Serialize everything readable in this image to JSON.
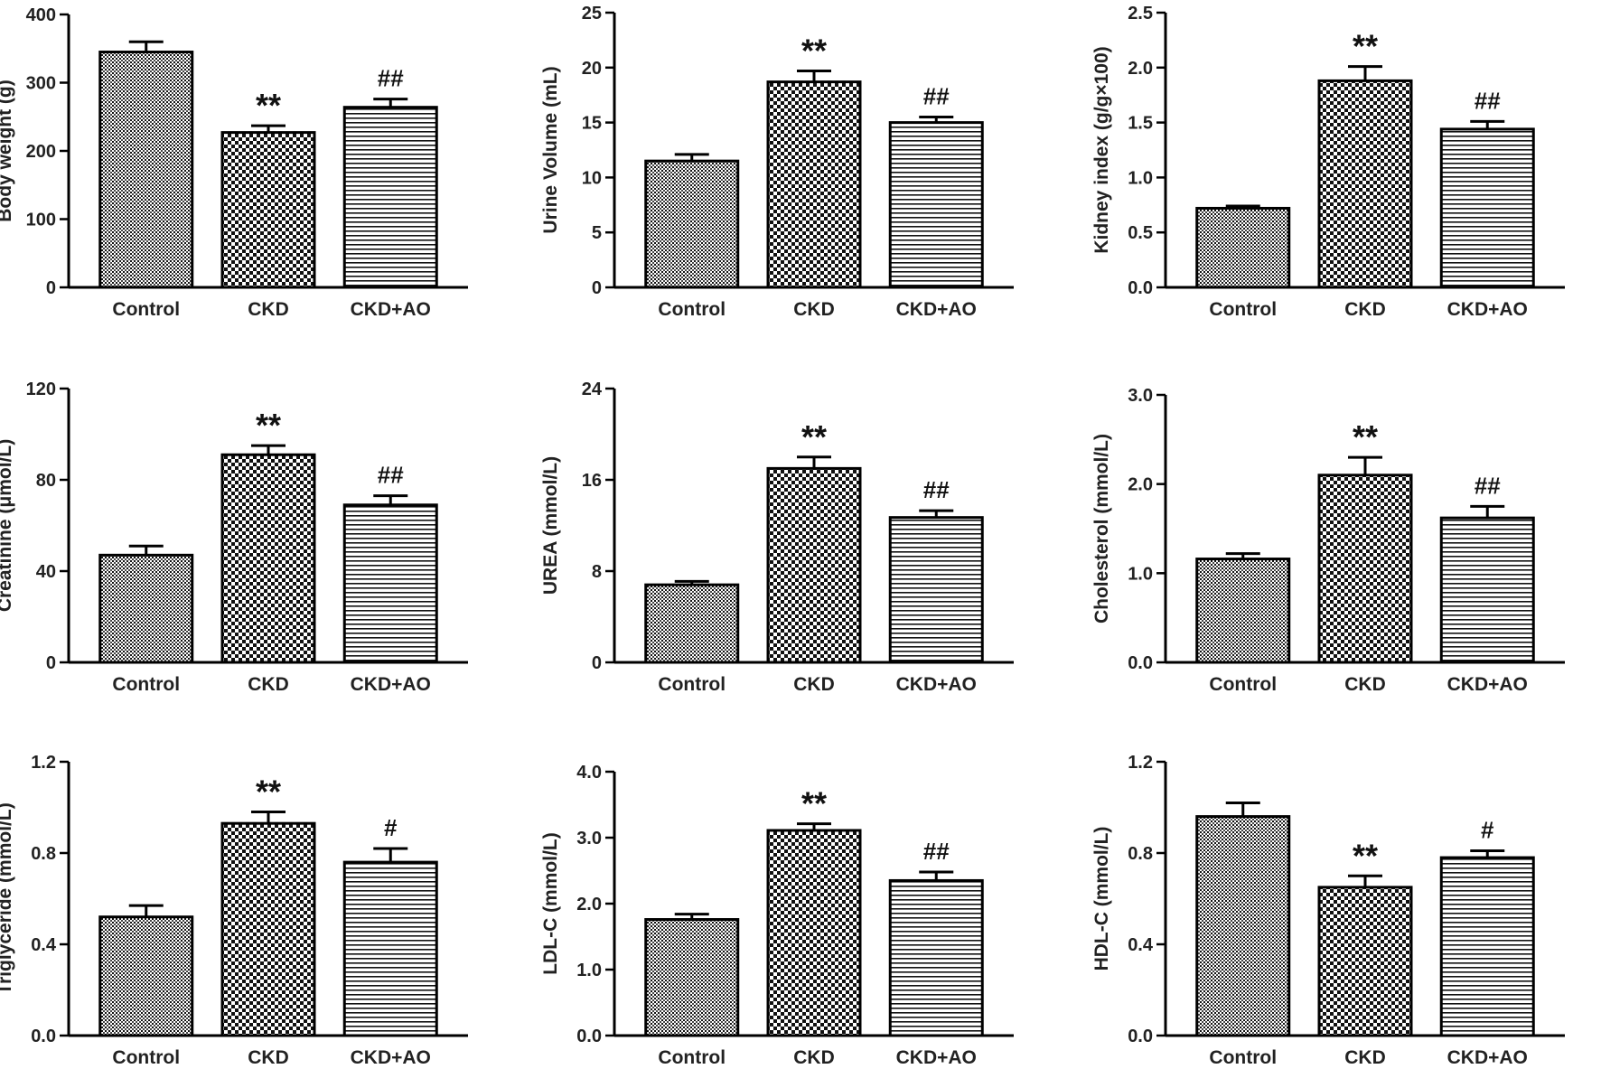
{
  "figure": {
    "categories": [
      "Control",
      "CKD",
      "CKD+AO"
    ],
    "patterns": [
      "fine-dots",
      "checker",
      "horizontal-lines"
    ]
  },
  "chart_data": [
    {
      "type": "bar",
      "ylabel": "Body weight (g)",
      "categories": [
        "Control",
        "CKD",
        "CKD+AO"
      ],
      "values": [
        345,
        227,
        264
      ],
      "errors": [
        15,
        10,
        12
      ],
      "annotations": [
        "",
        "**",
        "##"
      ],
      "ylim": [
        0,
        400
      ],
      "yticks": [
        0,
        100,
        200,
        300,
        400
      ],
      "ytick_labels": [
        "0",
        "100",
        "200",
        "300",
        "400"
      ]
    },
    {
      "type": "bar",
      "ylabel": "Urine Volume (mL)",
      "categories": [
        "Control",
        "CKD",
        "CKD+AO"
      ],
      "values": [
        11.5,
        18.7,
        15.0
      ],
      "errors": [
        0.6,
        1.0,
        0.5
      ],
      "annotations": [
        "",
        "**",
        "##"
      ],
      "ylim": [
        0,
        25
      ],
      "yticks": [
        0,
        5,
        10,
        15,
        20,
        25
      ],
      "ytick_labels": [
        "0",
        "5",
        "10",
        "15",
        "20",
        "25"
      ]
    },
    {
      "type": "bar",
      "ylabel": "Kidney  index (g/g×100)",
      "categories": [
        "Control",
        "CKD",
        "CKD+AO"
      ],
      "values": [
        0.72,
        1.88,
        1.44
      ],
      "errors": [
        0.02,
        0.13,
        0.07
      ],
      "annotations": [
        "",
        "**",
        "##"
      ],
      "ylim": [
        0,
        2.5
      ],
      "yticks": [
        0,
        0.5,
        1.0,
        1.5,
        2.0,
        2.5
      ],
      "ytick_labels": [
        "0.0",
        "0.5",
        "1.0",
        "1.5",
        "2.0",
        "2.5"
      ]
    },
    {
      "type": "bar",
      "ylabel": "Creatinine (μmol/L)",
      "categories": [
        "Control",
        "CKD",
        "CKD+AO"
      ],
      "values": [
        47,
        91,
        69
      ],
      "errors": [
        4,
        4,
        4
      ],
      "annotations": [
        "",
        "**",
        "##"
      ],
      "ylim": [
        0,
        120
      ],
      "yticks": [
        0,
        40,
        80,
        120
      ],
      "ytick_labels": [
        "0",
        "40",
        "80",
        "120"
      ]
    },
    {
      "type": "bar",
      "ylabel": "UREA (mmol/L)",
      "categories": [
        "Control",
        "CKD",
        "CKD+AO"
      ],
      "values": [
        6.8,
        17.0,
        12.7
      ],
      "errors": [
        0.3,
        1.0,
        0.6
      ],
      "annotations": [
        "",
        "**",
        "##"
      ],
      "ylim": [
        0,
        24
      ],
      "yticks": [
        0,
        8,
        16,
        24
      ],
      "ytick_labels": [
        "0",
        "8",
        "16",
        "24"
      ]
    },
    {
      "type": "bar",
      "ylabel": "Cholesterol (mmol/L)",
      "categories": [
        "Control",
        "CKD",
        "CKD+AO"
      ],
      "values": [
        1.16,
        2.1,
        1.62
      ],
      "errors": [
        0.06,
        0.2,
        0.13
      ],
      "annotations": [
        "",
        "**",
        "##"
      ],
      "ylim": [
        0,
        3.0
      ],
      "yticks": [
        0,
        1.0,
        2.0,
        3.0
      ],
      "ytick_labels": [
        "0.0",
        "1.0",
        "2.0",
        "3.0"
      ]
    },
    {
      "type": "bar",
      "ylabel": "Triglyceride (mmol/L)",
      "categories": [
        "Control",
        "CKD",
        "CKD+AO"
      ],
      "values": [
        0.52,
        0.93,
        0.76
      ],
      "errors": [
        0.05,
        0.05,
        0.06
      ],
      "annotations": [
        "",
        "**",
        "#"
      ],
      "ylim": [
        0,
        1.2
      ],
      "yticks": [
        0,
        0.4,
        0.8,
        1.2
      ],
      "ytick_labels": [
        "0.0",
        "0.4",
        "0.8",
        "1.2"
      ]
    },
    {
      "type": "bar",
      "ylabel": "LDL-C (mmol/L)",
      "categories": [
        "Control",
        "CKD",
        "CKD+AO"
      ],
      "values": [
        1.76,
        3.11,
        2.35
      ],
      "errors": [
        0.08,
        0.1,
        0.13
      ],
      "annotations": [
        "",
        "**",
        "##"
      ],
      "ylim": [
        0,
        4.0
      ],
      "yticks": [
        0,
        1.0,
        2.0,
        3.0,
        4.0
      ],
      "ytick_labels": [
        "0.0",
        "1.0",
        "2.0",
        "3.0",
        "4.0"
      ]
    },
    {
      "type": "bar",
      "ylabel": "HDL-C (mmol/L)",
      "categories": [
        "Control",
        "CKD",
        "CKD+AO"
      ],
      "values": [
        0.96,
        0.65,
        0.78
      ],
      "errors": [
        0.06,
        0.05,
        0.03
      ],
      "annotations": [
        "",
        "**",
        "#"
      ],
      "ylim": [
        0,
        1.2
      ],
      "yticks": [
        0,
        0.4,
        0.8,
        1.2
      ],
      "ytick_labels": [
        "0.0",
        "0.4",
        "0.8",
        "1.2"
      ]
    }
  ]
}
